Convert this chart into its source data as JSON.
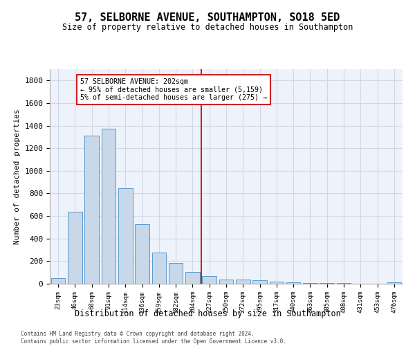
{
  "title": "57, SELBORNE AVENUE, SOUTHAMPTON, SO18 5ED",
  "subtitle": "Size of property relative to detached houses in Southampton",
  "xlabel": "Distribution of detached houses by size in Southampton",
  "ylabel": "Number of detached properties",
  "bar_labels": [
    "23sqm",
    "46sqm",
    "68sqm",
    "91sqm",
    "114sqm",
    "136sqm",
    "159sqm",
    "182sqm",
    "204sqm",
    "227sqm",
    "250sqm",
    "272sqm",
    "295sqm",
    "317sqm",
    "340sqm",
    "363sqm",
    "385sqm",
    "408sqm",
    "431sqm",
    "453sqm",
    "476sqm"
  ],
  "bar_values": [
    50,
    640,
    1310,
    1375,
    848,
    530,
    275,
    182,
    105,
    65,
    38,
    35,
    28,
    20,
    10,
    8,
    5,
    4,
    3,
    2,
    15
  ],
  "bar_color": "#c8d8e8",
  "bar_edge_color": "#5599cc",
  "vline_pos": 8.5,
  "vline_color": "#cc2222",
  "annotation_text": "57 SELBORNE AVENUE: 202sqm\n← 95% of detached houses are smaller (5,159)\n5% of semi-detached houses are larger (275) →",
  "annotation_box_color": "#ffffff",
  "annotation_box_edge": "#cc2222",
  "ylim": [
    0,
    1900
  ],
  "yticks": [
    0,
    200,
    400,
    600,
    800,
    1000,
    1200,
    1400,
    1600,
    1800
  ],
  "grid_color": "#d0d8e8",
  "bg_color": "#eef2fa",
  "footer_line1": "Contains HM Land Registry data © Crown copyright and database right 2024.",
  "footer_line2": "Contains public sector information licensed under the Open Government Licence v3.0."
}
